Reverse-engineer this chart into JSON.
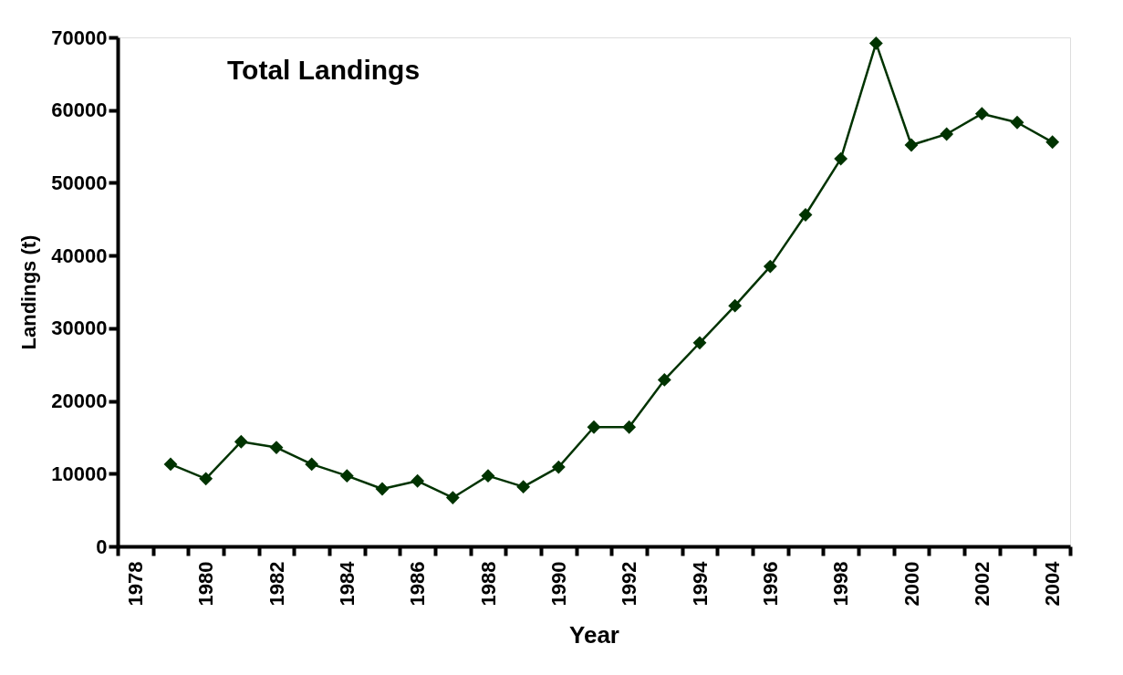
{
  "chart_data": {
    "type": "line",
    "title": "Total Landings",
    "xlabel": "Year",
    "ylabel": "Landings (t)",
    "categories": [
      "1978",
      null,
      "1980",
      null,
      "1982",
      null,
      "1984",
      null,
      "1986",
      null,
      "1988",
      null,
      "1990",
      null,
      "1992",
      null,
      "1994",
      null,
      "1996",
      null,
      "1998",
      null,
      "2000",
      null,
      "2002",
      null,
      "2004"
    ],
    "series": [
      {
        "color": "#003300",
        "values": [
          null,
          11300,
          9300,
          14400,
          13600,
          11300,
          9700,
          7900,
          9000,
          6700,
          9700,
          8200,
          10900,
          16400,
          16400,
          22900,
          28000,
          33100,
          38500,
          45600,
          53300,
          69200,
          55200,
          56700,
          59500,
          58300,
          55600
        ]
      }
    ],
    "ylim": [
      0,
      70000
    ],
    "yticks": [
      0,
      10000,
      20000,
      30000,
      40000,
      50000,
      60000,
      70000
    ],
    "grid": false,
    "marker": "diamond",
    "line_style": "solid"
  }
}
